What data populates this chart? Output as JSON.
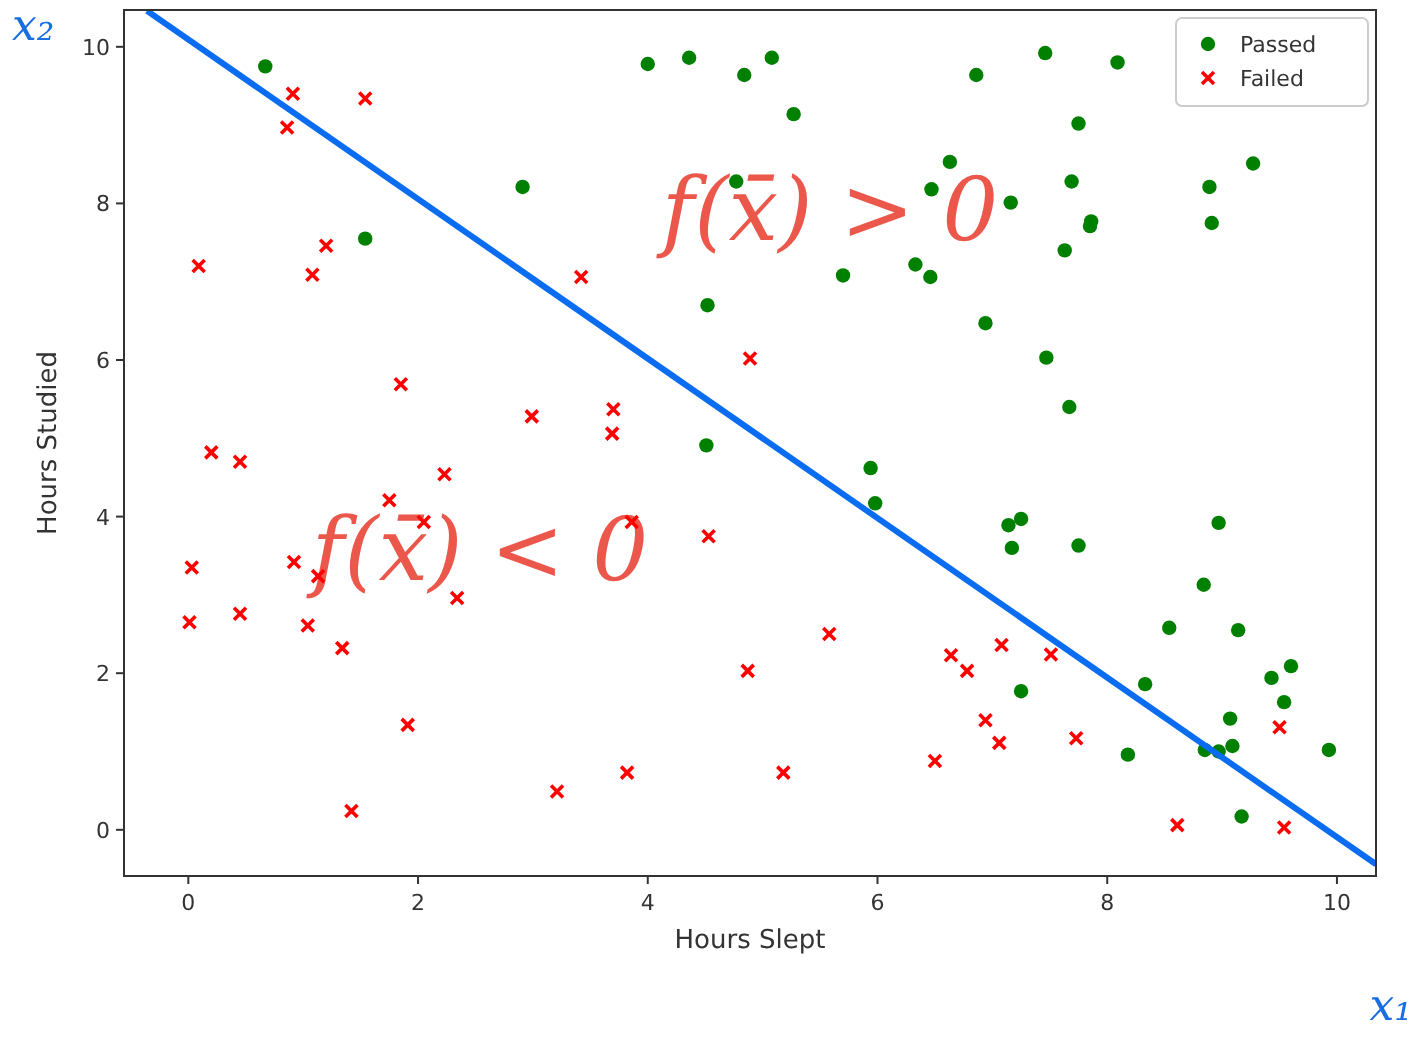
{
  "chart_data": {
    "type": "scatter",
    "xlabel": "Hours Slept",
    "ylabel": "Hours Studied",
    "xlim": [
      -0.56,
      10.34
    ],
    "ylim": [
      -0.59,
      10.47
    ],
    "xticks": [
      0,
      2,
      4,
      6,
      8,
      10
    ],
    "yticks": [
      0,
      2,
      4,
      6,
      8,
      10
    ],
    "grid": false,
    "legend": "top right",
    "series": [
      {
        "name": "Passed",
        "color": "#008000",
        "marker": "circle",
        "x": [
          0.67,
          4.0,
          4.36,
          4.84,
          2.91,
          4.77,
          1.54,
          4.52,
          4.51,
          5.08,
          5.27,
          6.86,
          7.46,
          8.09,
          7.75,
          6.63,
          6.47,
          7.69,
          7.16,
          7.86,
          7.85,
          7.63,
          5.7,
          6.33,
          6.46,
          6.94,
          7.47,
          7.67,
          8.89,
          9.27,
          8.91,
          5.94,
          5.98,
          7.14,
          7.25,
          7.17,
          7.75,
          8.97,
          8.84,
          8.54,
          9.14,
          9.43,
          9.6,
          7.25,
          8.33,
          9.07,
          9.54,
          8.85,
          8.97,
          9.09,
          8.18,
          9.93,
          9.17
        ],
        "values": [
          9.75,
          9.78,
          9.86,
          9.64,
          8.21,
          8.28,
          7.55,
          6.7,
          4.91,
          9.86,
          9.14,
          9.64,
          9.92,
          9.8,
          9.02,
          8.53,
          8.18,
          8.28,
          8.01,
          7.77,
          7.71,
          7.4,
          7.08,
          7.22,
          7.06,
          6.47,
          6.03,
          5.4,
          8.21,
          8.51,
          7.75,
          4.62,
          4.17,
          3.89,
          3.97,
          3.6,
          3.63,
          3.92,
          3.13,
          2.58,
          2.55,
          1.94,
          2.09,
          1.77,
          1.86,
          1.42,
          1.63,
          1.02,
          1.0,
          1.07,
          0.96,
          1.02,
          0.17
        ]
      },
      {
        "name": "Failed",
        "color": "#ff0000",
        "marker": "cross",
        "x": [
          0.91,
          1.54,
          0.86,
          1.2,
          0.09,
          1.08,
          3.42,
          4.89,
          1.85,
          2.99,
          3.7,
          3.69,
          0.2,
          0.45,
          1.75,
          2.23,
          2.05,
          3.86,
          0.92,
          1.13,
          0.03,
          2.34,
          4.53,
          0.01,
          0.45,
          1.04,
          1.34,
          4.87,
          1.91,
          3.82,
          3.21,
          1.42,
          5.58,
          6.64,
          6.78,
          7.08,
          7.51,
          6.94,
          7.06,
          7.73,
          6.5,
          5.18,
          8.61,
          9.54,
          9.5
        ],
        "values": [
          9.4,
          9.34,
          8.97,
          7.46,
          7.2,
          7.09,
          7.06,
          6.02,
          5.69,
          5.28,
          5.37,
          5.06,
          4.82,
          4.7,
          4.21,
          4.54,
          3.93,
          3.93,
          3.42,
          3.24,
          3.35,
          2.96,
          3.75,
          2.65,
          2.76,
          2.61,
          2.32,
          2.03,
          1.34,
          0.73,
          0.49,
          0.24,
          2.5,
          2.23,
          2.03,
          2.36,
          2.24,
          1.4,
          1.11,
          1.17,
          0.88,
          0.73,
          0.06,
          0.03,
          1.31
        ]
      },
      {
        "type": "line",
        "color": "#0a6cf0",
        "marker": "none",
        "line_style": "solid",
        "x": [
          -0.36,
          10.34
        ],
        "values": [
          10.46,
          -0.44
        ]
      }
    ],
    "annotations": [
      "f(x̄) > 0",
      "f(x̄) < 0",
      "x₂",
      "x₁"
    ]
  }
}
